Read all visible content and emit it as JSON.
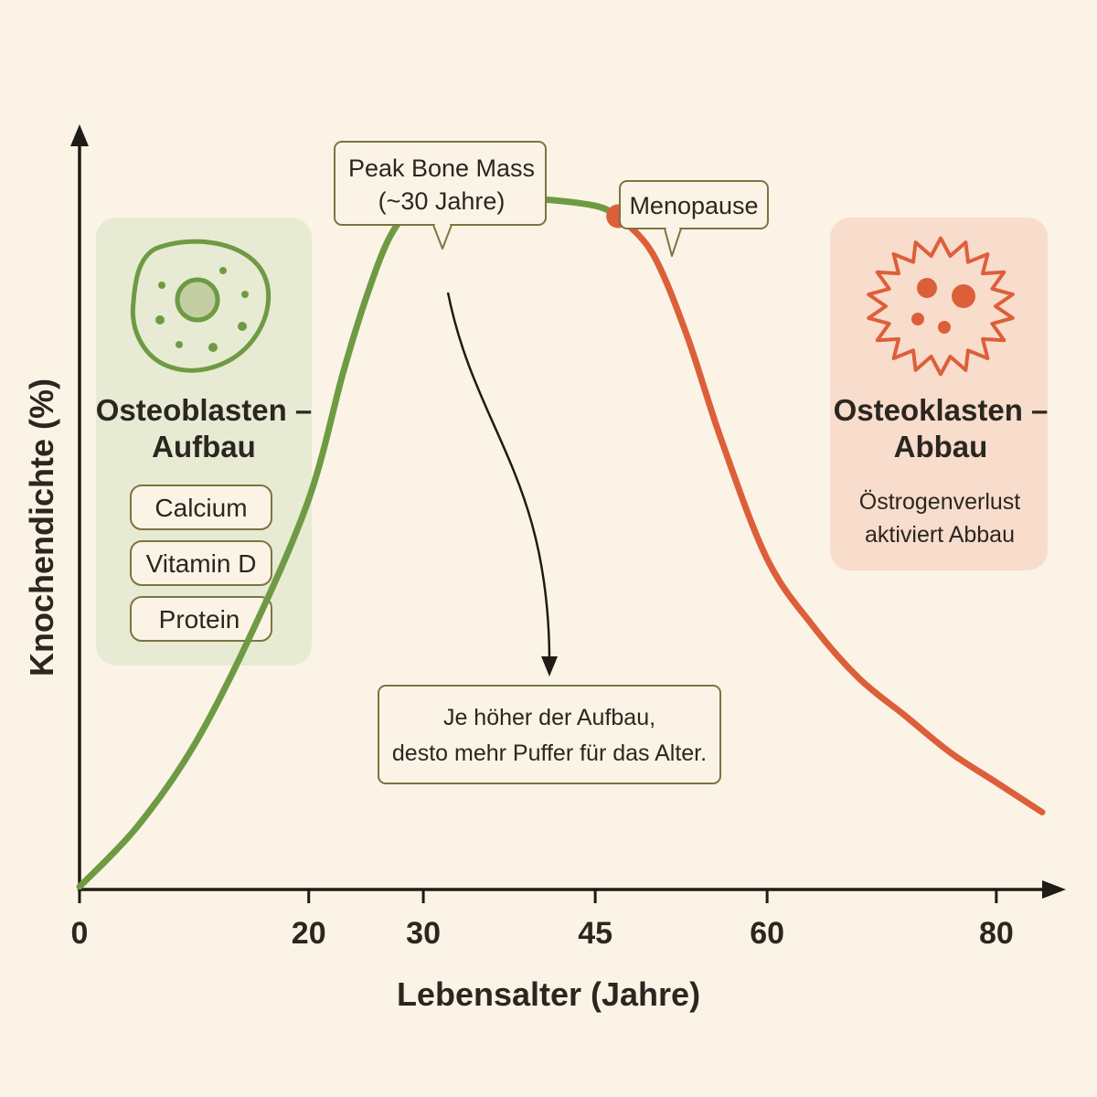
{
  "chart_data": {
    "type": "line",
    "xlabel": "Lebensalter (Jahre)",
    "ylabel": "Knochendichte (%)",
    "xlim": [
      0,
      84
    ],
    "ylim": [
      0,
      100
    ],
    "x_ticks": [
      "0",
      "20",
      "30",
      "45",
      "60",
      "80"
    ],
    "grid": false,
    "series": [
      {
        "color": "#6e9a44",
        "points": [
          [
            0,
            0
          ],
          [
            5,
            8
          ],
          [
            10,
            19
          ],
          [
            15,
            34
          ],
          [
            20,
            52
          ],
          [
            23,
            69
          ],
          [
            25,
            79
          ],
          [
            27,
            87
          ],
          [
            29,
            91
          ],
          [
            31,
            92
          ],
          [
            35,
            92.4
          ],
          [
            40,
            92.3
          ],
          [
            45,
            91.4
          ],
          [
            47,
            90
          ]
        ]
      },
      {
        "color": "#dd5f3a",
        "points": [
          [
            47,
            90
          ],
          [
            50,
            85
          ],
          [
            53,
            74
          ],
          [
            56,
            60
          ],
          [
            60,
            44
          ],
          [
            64,
            35
          ],
          [
            68,
            28
          ],
          [
            72,
            23
          ],
          [
            76,
            18
          ],
          [
            80,
            14
          ],
          [
            84,
            10
          ]
        ]
      }
    ],
    "markers": [
      {
        "x": 31,
        "y": 92,
        "color": "#6e9a44",
        "label_lines": [
          "Peak Bone Mass",
          "(~30 Jahre)"
        ]
      },
      {
        "x": 47,
        "y": 90,
        "color": "#dd5f3a",
        "label_lines": [
          "Menopause"
        ]
      }
    ],
    "annotation": {
      "lines": [
        "Je höher der Aufbau,",
        "desto mehr Puffer für das Alter."
      ]
    },
    "panels": {
      "left": {
        "title_lines": [
          "Osteoblasten –",
          "Aufbau"
        ],
        "pills": [
          "Calcium",
          "Vitamin D",
          "Protein"
        ],
        "icon": "osteoblast-cell-icon",
        "bg": "#e8ebd3"
      },
      "right": {
        "title_lines": [
          "Osteoklasten –",
          "Abbau"
        ],
        "note_lines": [
          "Östrogenverlust",
          "aktiviert Abbau"
        ],
        "icon": "osteoclast-cell-icon",
        "bg": "#f8dccc"
      }
    },
    "colors": {
      "build": "#6e9a44",
      "loss": "#dd5f3a",
      "note": "#8a2a1c",
      "axis": "#1f1b17"
    }
  }
}
